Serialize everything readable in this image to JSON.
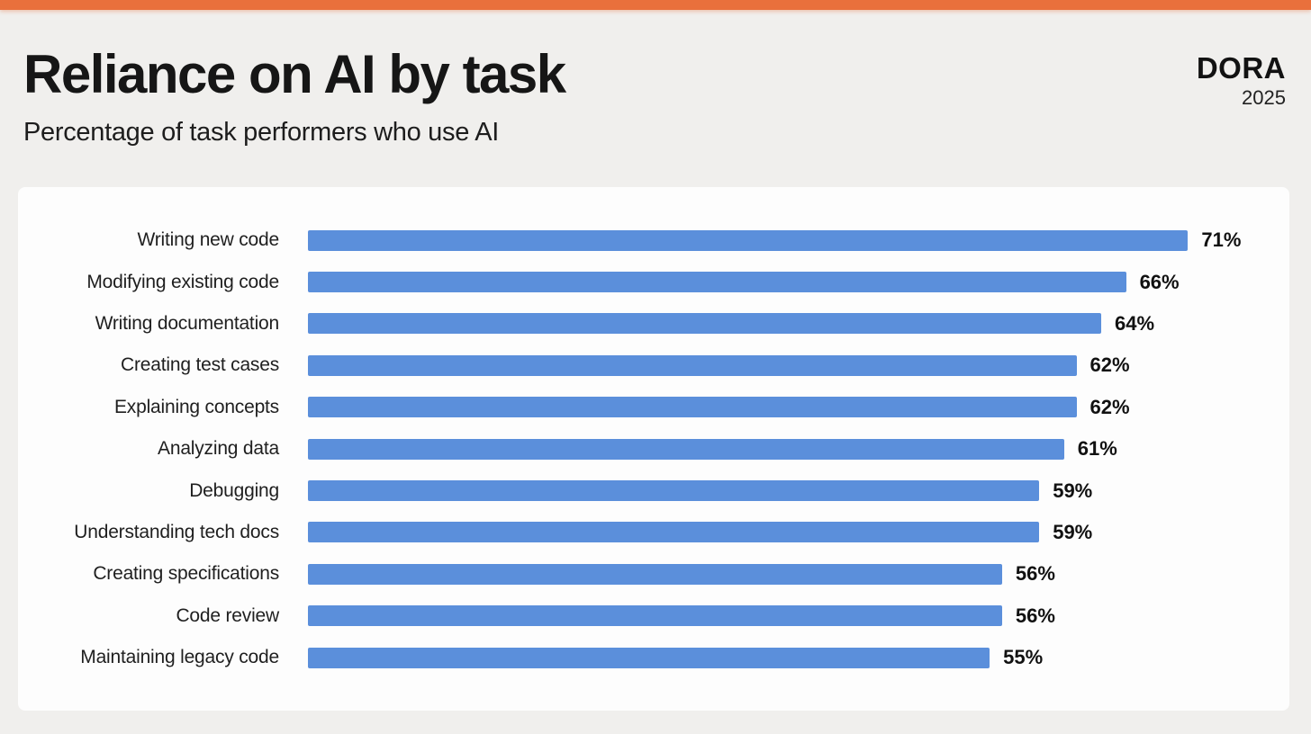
{
  "page": {
    "title": "Reliance on AI by task",
    "subtitle": "Percentage of task performers who use AI",
    "brand": {
      "name": "DORA",
      "year": "2025"
    }
  },
  "colors": {
    "accent_orange": "#E9703C",
    "bar_blue": "#5B8FDB",
    "background": "#F0EFED",
    "card": "#FDFDFD",
    "text": "#161616"
  },
  "chart_data": {
    "type": "bar",
    "orientation": "horizontal",
    "title": "Reliance on AI by task",
    "subtitle": "Percentage of task performers who use AI",
    "xlabel": "",
    "ylabel": "",
    "xlim": [
      0,
      77
    ],
    "grid": false,
    "legend": "none",
    "value_suffix": "%",
    "categories": [
      "Writing new code",
      "Modifying existing code",
      "Writing documentation",
      "Creating test cases",
      "Explaining concepts",
      "Analyzing data",
      "Debugging",
      "Understanding tech docs",
      "Creating specifications",
      "Code review",
      "Maintaining legacy code"
    ],
    "values": [
      71,
      66,
      64,
      62,
      62,
      61,
      59,
      59,
      56,
      56,
      55
    ],
    "rows": [
      {
        "label": "Writing new code",
        "value": 71,
        "display": "71%"
      },
      {
        "label": "Modifying existing code",
        "value": 66,
        "display": "66%"
      },
      {
        "label": "Writing documentation",
        "value": 64,
        "display": "64%"
      },
      {
        "label": "Creating test cases",
        "value": 62,
        "display": "62%"
      },
      {
        "label": "Explaining concepts",
        "value": 62,
        "display": "62%"
      },
      {
        "label": "Analyzing data",
        "value": 61,
        "display": "61%"
      },
      {
        "label": "Debugging",
        "value": 59,
        "display": "59%"
      },
      {
        "label": "Understanding tech docs",
        "value": 59,
        "display": "59%"
      },
      {
        "label": "Creating specifications",
        "value": 56,
        "display": "56%"
      },
      {
        "label": "Code review",
        "value": 56,
        "display": "56%"
      },
      {
        "label": "Maintaining legacy code",
        "value": 55,
        "display": "55%"
      }
    ]
  }
}
